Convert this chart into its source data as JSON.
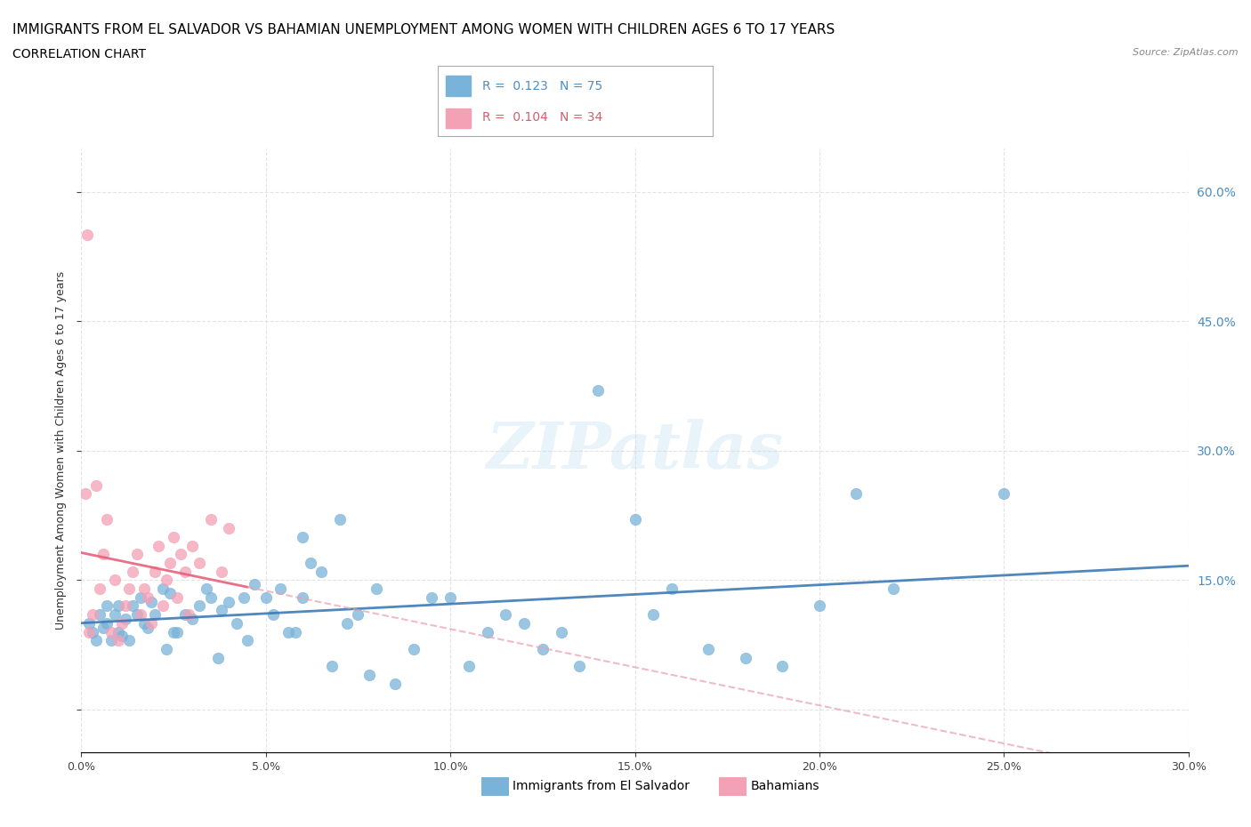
{
  "title": "IMMIGRANTS FROM EL SALVADOR VS BAHAMIAN UNEMPLOYMENT AMONG WOMEN WITH CHILDREN AGES 6 TO 17 YEARS",
  "subtitle": "CORRELATION CHART",
  "source": "Source: ZipAtlas.com",
  "ylabel": "Unemployment Among Women with Children Ages 6 to 17 years",
  "x_ticks": [
    0.0,
    5.0,
    10.0,
    15.0,
    20.0,
    25.0,
    30.0
  ],
  "y_ticks": [
    0.0,
    15.0,
    30.0,
    45.0,
    60.0
  ],
  "xlim": [
    0.0,
    30.0
  ],
  "ylim": [
    -5.0,
    65.0
  ],
  "blue_R": "0.123",
  "blue_N": "75",
  "pink_R": "0.104",
  "pink_N": "34",
  "blue_color": "#7ab3d9",
  "pink_color": "#f4a0b5",
  "blue_line_color": "#3d7ab5",
  "pink_line_color": "#e8607a",
  "pink_dash_color": "#e8a0b0",
  "legend_blue_label": "Immigrants from El Salvador",
  "legend_pink_label": "Bahamians",
  "blue_x": [
    0.2,
    0.3,
    0.4,
    0.5,
    0.6,
    0.7,
    0.7,
    0.8,
    0.9,
    1.0,
    1.0,
    1.1,
    1.2,
    1.3,
    1.4,
    1.5,
    1.6,
    1.7,
    1.8,
    1.9,
    2.0,
    2.2,
    2.3,
    2.4,
    2.5,
    2.6,
    2.8,
    3.0,
    3.2,
    3.4,
    3.5,
    3.7,
    3.8,
    4.0,
    4.2,
    4.4,
    4.5,
    4.7,
    5.0,
    5.2,
    5.4,
    5.6,
    5.8,
    6.0,
    6.0,
    6.2,
    6.5,
    6.8,
    7.0,
    7.2,
    7.5,
    7.8,
    8.0,
    8.5,
    9.0,
    9.5,
    10.0,
    10.5,
    11.0,
    11.5,
    12.0,
    12.5,
    13.0,
    13.5,
    14.0,
    15.0,
    15.5,
    16.0,
    17.0,
    18.0,
    19.0,
    20.0,
    21.0,
    22.0,
    25.0
  ],
  "blue_y": [
    10.0,
    9.0,
    8.0,
    11.0,
    9.5,
    10.0,
    12.0,
    8.0,
    11.0,
    9.0,
    12.0,
    8.5,
    10.5,
    8.0,
    12.0,
    11.0,
    13.0,
    10.0,
    9.5,
    12.5,
    11.0,
    14.0,
    7.0,
    13.5,
    9.0,
    9.0,
    11.0,
    10.5,
    12.0,
    14.0,
    13.0,
    6.0,
    11.5,
    12.5,
    10.0,
    13.0,
    8.0,
    14.5,
    13.0,
    11.0,
    14.0,
    9.0,
    9.0,
    20.0,
    13.0,
    17.0,
    16.0,
    5.0,
    22.0,
    10.0,
    11.0,
    4.0,
    14.0,
    3.0,
    7.0,
    13.0,
    13.0,
    5.0,
    9.0,
    11.0,
    10.0,
    7.0,
    9.0,
    5.0,
    37.0,
    22.0,
    11.0,
    14.0,
    7.0,
    6.0,
    5.0,
    12.0,
    25.0,
    14.0,
    25.0
  ],
  "pink_x": [
    0.1,
    0.2,
    0.3,
    0.4,
    0.5,
    0.6,
    0.7,
    0.8,
    0.9,
    1.0,
    1.1,
    1.2,
    1.3,
    1.4,
    1.5,
    1.6,
    1.7,
    1.8,
    1.9,
    2.0,
    2.1,
    2.2,
    2.3,
    2.4,
    2.5,
    2.6,
    2.7,
    2.8,
    2.9,
    3.0,
    3.2,
    3.5,
    3.8,
    4.0
  ],
  "pink_y": [
    25.0,
    9.0,
    11.0,
    26.0,
    14.0,
    18.0,
    22.0,
    9.0,
    15.0,
    8.0,
    10.0,
    12.0,
    14.0,
    16.0,
    18.0,
    11.0,
    14.0,
    13.0,
    10.0,
    16.0,
    19.0,
    12.0,
    15.0,
    17.0,
    20.0,
    13.0,
    18.0,
    16.0,
    11.0,
    19.0,
    17.0,
    22.0,
    16.0,
    21.0
  ],
  "pink_outlier_x": 0.15,
  "pink_outlier_y": 55.0,
  "watermark": "ZIPatlas",
  "background_color": "#ffffff",
  "grid_color": "#d8d8d8",
  "right_label_color": "#4a8ec2",
  "title_fontsize": 11,
  "subtitle_fontsize": 10
}
